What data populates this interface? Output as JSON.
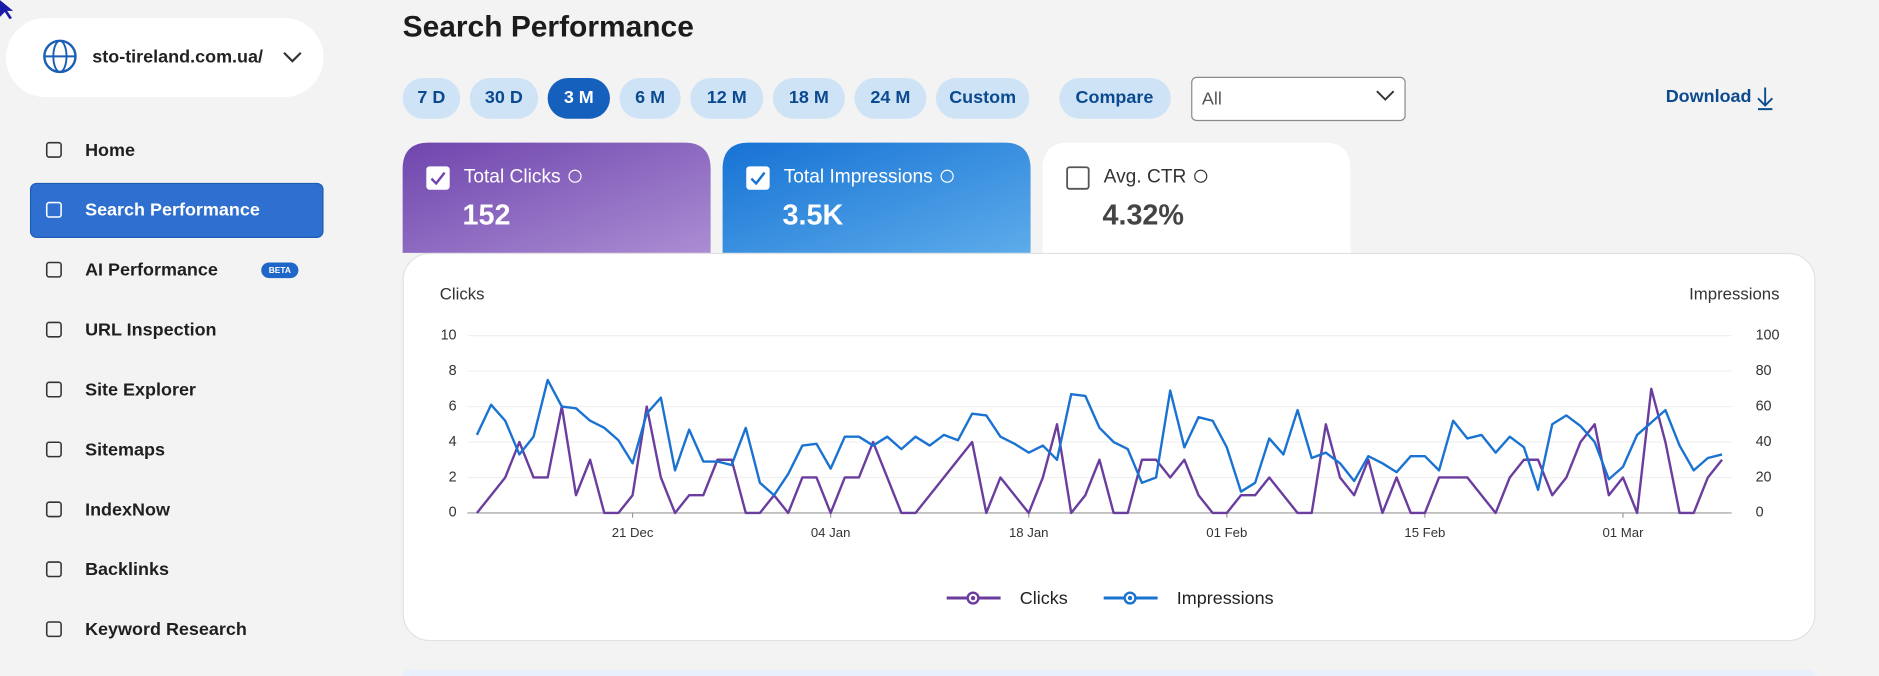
{
  "sidebar": {
    "site": "sto-tireland.com.ua/",
    "badge": "BETA",
    "nav": [
      "Home",
      "Search Performance",
      "AI Performance",
      "URL Inspection",
      "Site Explorer",
      "Sitemaps",
      "IndexNow",
      "Backlinks",
      "Keyword Research"
    ]
  },
  "header": {
    "title": "Search Performance"
  },
  "toolbar": {
    "ranges": [
      "7 D",
      "30 D",
      "3 M",
      "6 M",
      "12 M",
      "18 M",
      "24 M",
      "Custom"
    ],
    "compare": "Compare",
    "filter": "All",
    "download": "Download"
  },
  "metrics": [
    {
      "label": "Total Clicks",
      "value": 152,
      "checked": true
    },
    {
      "label": "Total Impressions",
      "value": "3.5K",
      "checked": true
    },
    {
      "label": "Avg. CTR",
      "value": "4.32%",
      "checked": false
    }
  ],
  "chart_data": {
    "type": "line",
    "y_label": "Clicks",
    "y2_label": "Impressions",
    "grid": true,
    "categories": [
      null,
      null,
      null,
      null,
      null,
      null,
      null,
      null,
      null,
      null,
      null,
      "21 Dec",
      null,
      null,
      null,
      null,
      null,
      null,
      null,
      null,
      null,
      null,
      null,
      null,
      null,
      "04 Jan",
      null,
      null,
      null,
      null,
      null,
      null,
      null,
      null,
      null,
      null,
      null,
      null,
      null,
      "18 Jan",
      null,
      null,
      null,
      null,
      null,
      null,
      null,
      null,
      null,
      null,
      null,
      null,
      null,
      "01 Feb",
      null,
      null,
      null,
      null,
      null,
      null,
      null,
      null,
      null,
      null,
      null,
      null,
      null,
      "15 Feb",
      null,
      null,
      null,
      null,
      null,
      null,
      null,
      null,
      null,
      null,
      null,
      null,
      null,
      "01 Mar",
      null,
      null,
      null,
      null,
      null,
      null,
      null
    ],
    "ylim": [
      0,
      10
    ],
    "yticks": [
      0,
      2,
      4,
      6,
      8,
      10
    ],
    "y2lim": [
      0,
      100
    ],
    "y2ticks": [
      0,
      20,
      40,
      60,
      80,
      100
    ],
    "series": [
      {
        "name": "Clicks",
        "color": "#6a3d9e",
        "values": [
          0,
          1,
          2,
          4,
          2,
          2,
          6,
          1,
          3,
          0,
          0,
          1,
          6,
          2,
          0,
          1,
          1,
          3,
          3,
          0,
          0,
          1,
          0,
          2,
          2,
          0,
          2,
          2,
          4,
          2,
          0,
          0,
          1,
          2,
          3,
          4,
          0,
          2,
          1,
          0,
          2,
          5,
          0,
          1,
          3,
          0,
          0,
          3,
          3,
          2,
          3,
          1,
          0,
          0,
          1,
          1,
          2,
          1,
          0,
          0,
          5,
          2,
          1,
          3,
          0,
          2,
          0,
          0,
          2,
          2,
          2,
          1,
          0,
          2,
          3,
          3,
          1,
          2,
          4,
          5,
          1,
          2,
          0,
          7,
          4,
          0,
          0,
          2,
          3
        ]
      },
      {
        "name": "Impressions",
        "color": "#1a73d1",
        "axis": "y2",
        "values": [
          44,
          61,
          52,
          33,
          43,
          75,
          60,
          59,
          52,
          48,
          41,
          28,
          56,
          65,
          24,
          47,
          29,
          29,
          27,
          48,
          17,
          10,
          22,
          38,
          39,
          25,
          43,
          43,
          38,
          43,
          36,
          43,
          38,
          44,
          41,
          56,
          55,
          43,
          39,
          34,
          38,
          30,
          67,
          66,
          48,
          40,
          36,
          17,
          20,
          69,
          37,
          54,
          52,
          37,
          12,
          17,
          42,
          33,
          58,
          31,
          34,
          28,
          18,
          32,
          28,
          23,
          32,
          32,
          24,
          52,
          42,
          44,
          34,
          43,
          37,
          13,
          50,
          55,
          49,
          40,
          19,
          26,
          44,
          51,
          58,
          38,
          24,
          31,
          33
        ]
      }
    ]
  }
}
